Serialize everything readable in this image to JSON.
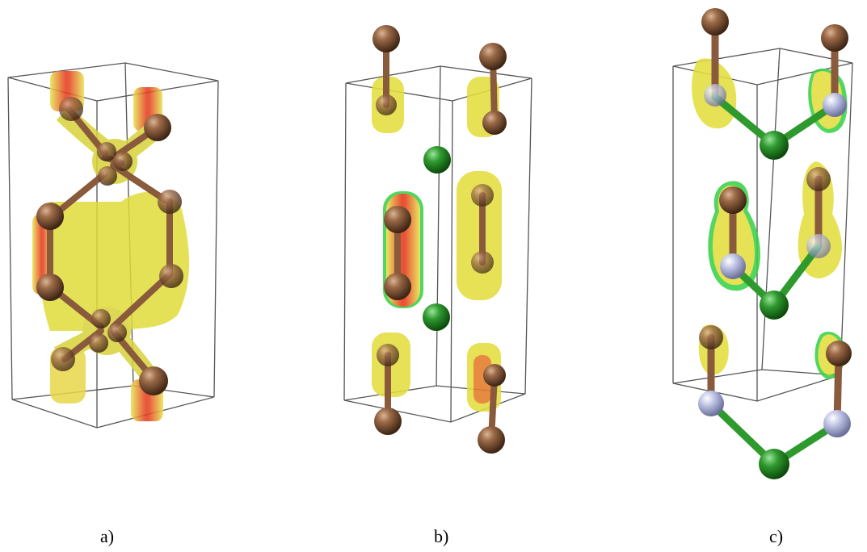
{
  "panels": [
    {
      "label": "a)"
    },
    {
      "label": "b)"
    },
    {
      "label": "c)"
    }
  ],
  "colors": {
    "carbon_atom": "#8a5a3c",
    "chlorine_atom": "#2e9a2e",
    "nitrogen_atom": "#aab0d0",
    "isosurface_yellow": "#e3e04a",
    "isosurface_red": "#e63b1c",
    "isosurface_green": "#3ad14a",
    "cell_edge": "#555555"
  }
}
